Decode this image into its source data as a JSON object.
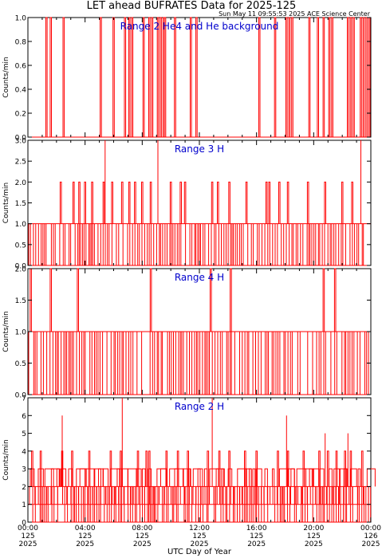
{
  "title": "LET ahead BUFRATES Data for 2025-125",
  "timestamp": "Sun May 11 09:55:53 2025 ACE Science Center",
  "xlabel": "UTC Day of Year",
  "colors": {
    "data": "#ff0000",
    "panel_label": "#0000cc",
    "axes": "#000000"
  },
  "x_ticks": [
    {
      "hour": 0,
      "time": "00:00",
      "doy": "125",
      "year": "2025"
    },
    {
      "hour": 4,
      "time": "04:00",
      "doy": "125",
      "year": "2025"
    },
    {
      "hour": 8,
      "time": "08:00",
      "doy": "125",
      "year": "2025"
    },
    {
      "hour": 12,
      "time": "12:00",
      "doy": "125",
      "year": "2025"
    },
    {
      "hour": 16,
      "time": "16:00",
      "doy": "125",
      "year": "2025"
    },
    {
      "hour": 20,
      "time": "20:00",
      "doy": "125",
      "year": "2025"
    },
    {
      "hour": 24,
      "time": "00:00",
      "doy": "126",
      "year": "2025"
    }
  ],
  "chart_data": [
    {
      "type": "line",
      "label": "Range 2 He4 and He background",
      "ylabel": "Counts/min",
      "ylim": [
        0,
        1
      ],
      "yticks": [
        "0.0",
        "0.2",
        "0.4",
        "0.6",
        "0.8",
        "1.0"
      ],
      "xlim_hours": [
        0,
        24
      ],
      "baseline": 0,
      "spike_hours": [
        1.3,
        1.6,
        2.5,
        5.1,
        6.0,
        6.8,
        7.1,
        7.3,
        8.1,
        8.5,
        8.7,
        9.1,
        9.3,
        9.5,
        9.6,
        10.3,
        11.4,
        11.8,
        16.2,
        17.3,
        18.1,
        18.3,
        18.5,
        19.7,
        20.3,
        20.7,
        21.1,
        21.3,
        22.4,
        22.6,
        22.8,
        23.3,
        23.5,
        23.7,
        23.9
      ],
      "spike_value": 1
    },
    {
      "type": "line",
      "label": "Range 3 H",
      "ylabel": "Counts/min",
      "ylim": [
        0,
        3
      ],
      "yticks": [
        "0.0",
        "0.5",
        "1.0",
        "1.5",
        "2.0",
        "2.5",
        "3.0"
      ],
      "xlim_hours": [
        0,
        24
      ],
      "baseline": 1,
      "spike_hours": [
        2.3,
        3.2,
        3.6,
        4.0,
        4.5,
        5.3,
        5.9,
        6.6,
        7.1,
        7.5,
        8.0,
        8.6,
        10.0,
        10.7,
        11.0,
        12.9,
        13.3,
        14.1,
        15.3,
        16.7,
        16.9,
        17.6,
        18.2,
        19.6,
        20.8,
        22.0,
        22.7
      ],
      "spike_value": 2,
      "max_hours": [
        5.4,
        9.1,
        23.3
      ],
      "max_value": 3
    },
    {
      "type": "line",
      "label": "Range 4 H",
      "ylabel": "Counts/min",
      "ylim": [
        0,
        2
      ],
      "yticks": [
        "0.0",
        "0.5",
        "1.0",
        "1.5",
        "2.0"
      ],
      "xlim_hours": [
        0,
        24
      ],
      "baseline": 1,
      "spike_hours": [
        0.2,
        1.6,
        3.5,
        8.6,
        12.8,
        14.2,
        20.7,
        21.5
      ],
      "spike_value": 2
    },
    {
      "type": "line",
      "label": "Range 2 H",
      "ylabel": "Counts/min",
      "ylim": [
        0,
        7
      ],
      "yticks": [
        "0",
        "1",
        "2",
        "3",
        "4",
        "5",
        "6",
        "7"
      ],
      "xlim_hours": [
        0,
        24
      ],
      "baseline": 2,
      "spike_hours": [
        0.3,
        0.9,
        2.4,
        3.1,
        4.3,
        5.8,
        6.5,
        7.7,
        8.3,
        8.5,
        9.7,
        10.5,
        11.2,
        12.6,
        13.4,
        14.1,
        15.2,
        16.0,
        17.5,
        18.2,
        19.3,
        20.4,
        21.0,
        21.6,
        22.2,
        22.6,
        23.4
      ],
      "spike_value": 4,
      "max_hours": [
        2.4,
        6.6,
        12.9,
        18.1,
        20.8,
        22.4
      ],
      "max_values": [
        6,
        7,
        7,
        6,
        5,
        5
      ]
    }
  ]
}
